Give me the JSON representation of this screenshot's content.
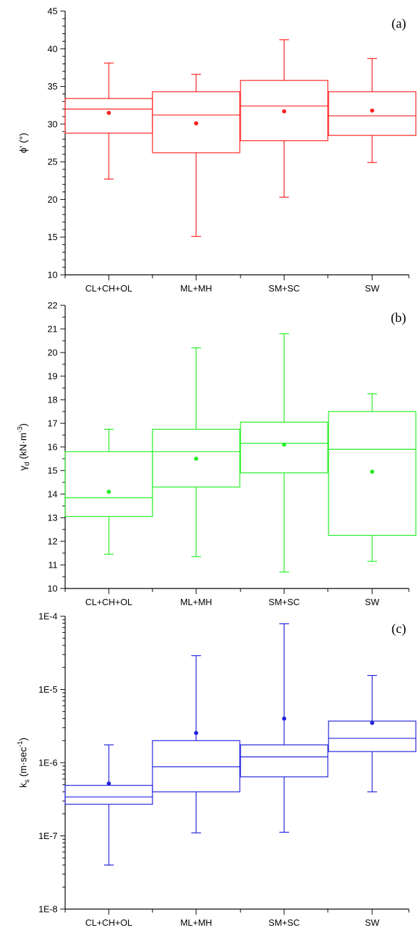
{
  "chart_data": [
    {
      "type": "box",
      "panel_label": "(a)",
      "ylabel": {
        "main": "ϕ' (°)"
      },
      "ylim": [
        10,
        45
      ],
      "yscale": "linear",
      "y_ticks": [
        10,
        15,
        20,
        25,
        30,
        35,
        40,
        45
      ],
      "color": "#ff2020",
      "categories": [
        "CL+CH+OL",
        "ML+MH",
        "SM+SC",
        "SW"
      ],
      "boxes": [
        {
          "category": "CL+CH+OL",
          "whisker_low": 22.7,
          "q1": 28.8,
          "median": 32.0,
          "q3": 33.4,
          "whisker_high": 38.1,
          "mean": 31.5
        },
        {
          "category": "ML+MH",
          "whisker_low": 15.1,
          "q1": 26.2,
          "median": 31.2,
          "q3": 34.3,
          "whisker_high": 36.6,
          "mean": 30.1
        },
        {
          "category": "SM+SC",
          "whisker_low": 20.3,
          "q1": 27.8,
          "median": 32.4,
          "q3": 35.8,
          "whisker_high": 41.2,
          "mean": 31.7
        },
        {
          "category": "SW",
          "whisker_low": 24.9,
          "q1": 28.5,
          "median": 31.1,
          "q3": 34.3,
          "whisker_high": 38.7,
          "mean": 31.8
        }
      ]
    },
    {
      "type": "box",
      "panel_label": "(b)",
      "ylabel": {
        "main": "γ",
        "sub": "d",
        "rest": " (kN·m",
        "sup": "-3",
        "end": ")"
      },
      "ylim": [
        10,
        22
      ],
      "yscale": "linear",
      "y_ticks": [
        10,
        11,
        12,
        13,
        14,
        15,
        16,
        17,
        18,
        19,
        20,
        21,
        22
      ],
      "color": "#22ee22",
      "categories": [
        "CL+CH+OL",
        "ML+MH",
        "SM+SC",
        "SW"
      ],
      "boxes": [
        {
          "category": "CL+CH+OL",
          "whisker_low": 11.45,
          "q1": 13.05,
          "median": 13.85,
          "q3": 15.8,
          "whisker_high": 16.75,
          "mean": 14.1
        },
        {
          "category": "ML+MH",
          "whisker_low": 11.35,
          "q1": 14.3,
          "median": 15.8,
          "q3": 16.75,
          "whisker_high": 20.2,
          "mean": 15.5
        },
        {
          "category": "SM+SC",
          "whisker_low": 10.7,
          "q1": 14.9,
          "median": 16.15,
          "q3": 17.05,
          "whisker_high": 20.8,
          "mean": 16.1
        },
        {
          "category": "SW",
          "whisker_low": 11.15,
          "q1": 12.25,
          "median": 15.9,
          "q3": 17.5,
          "whisker_high": 18.25,
          "mean": 14.95
        }
      ]
    },
    {
      "type": "box",
      "panel_label": "(c)",
      "ylabel": {
        "main": "k",
        "sub": "s",
        "rest": "  (m·sec",
        "sup": "-1",
        "end": ")"
      },
      "ylim": [
        1e-08,
        0.0001
      ],
      "yscale": "log",
      "y_ticks": [
        1e-08,
        1e-07,
        1e-06,
        1e-05,
        0.0001
      ],
      "y_tick_labels": [
        "1E-8",
        "1E-7",
        "1E-6",
        "1E-5",
        "1E-4"
      ],
      "color": "#2222dd",
      "categories": [
        "CL+CH+OL",
        "ML+MH",
        "SM+SC",
        "SW"
      ],
      "boxes": [
        {
          "category": "CL+CH+OL",
          "whisker_low": 4e-08,
          "q1": 2.7e-07,
          "median": 3.4e-07,
          "q3": 4.9e-07,
          "whisker_high": 1.75e-06,
          "mean": 5.2e-07
        },
        {
          "category": "ML+MH",
          "whisker_low": 1.1e-07,
          "q1": 4e-07,
          "median": 8.8e-07,
          "q3": 2e-06,
          "whisker_high": 2.9e-05,
          "mean": 2.55e-06
        },
        {
          "category": "SM+SC",
          "whisker_low": 1.12e-07,
          "q1": 6.4e-07,
          "median": 1.2e-06,
          "q3": 1.75e-06,
          "whisker_high": 7.9e-05,
          "mean": 4e-06
        },
        {
          "category": "SW",
          "whisker_low": 4e-07,
          "q1": 1.42e-06,
          "median": 2.15e-06,
          "q3": 3.7e-06,
          "whisker_high": 1.55e-05,
          "mean": 3.5e-06
        }
      ]
    }
  ]
}
